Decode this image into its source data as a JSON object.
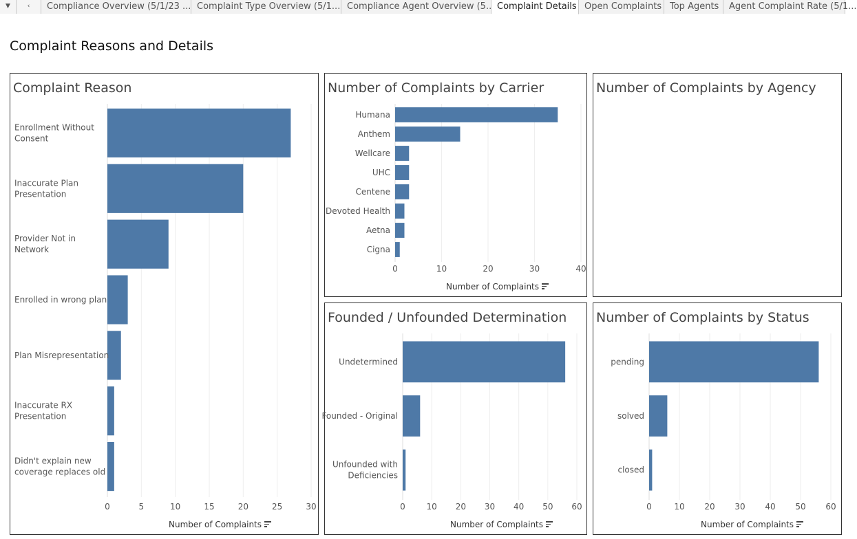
{
  "tabs": {
    "items": [
      {
        "label": "Compliance Overview (5/1/23 ..."
      },
      {
        "label": "Complaint Type Overview (5/1..."
      },
      {
        "label": "Compliance Agent Overview (5..."
      },
      {
        "label": "Complaint Details",
        "active": true
      },
      {
        "label": "Open Complaints"
      },
      {
        "label": "Top Agents"
      },
      {
        "label": "Agent Complaint Rate (5/1..."
      }
    ]
  },
  "page": {
    "title": "Complaint Reasons and Details"
  },
  "colors": {
    "bar": "#4e79a7",
    "grid": "#eeeeee",
    "text": "#555555"
  },
  "chart_data": [
    {
      "id": "reason",
      "type": "bar",
      "orientation": "horizontal",
      "title": "Complaint Reason",
      "xlabel": "Number of Complaints",
      "categories": [
        [
          "Enrollment Without",
          "Consent"
        ],
        [
          "Inaccurate Plan",
          "Presentation"
        ],
        [
          "Provider Not in",
          "Network"
        ],
        [
          "Enrolled in wrong plan"
        ],
        [
          "Plan Misrepresentation"
        ],
        [
          "Inaccurate RX",
          "Presentation"
        ],
        [
          "Didn't explain new",
          "coverage replaces old"
        ]
      ],
      "values": [
        27,
        20,
        9,
        3,
        2,
        1,
        1
      ],
      "xlim": [
        0,
        30
      ],
      "ticks": [
        0,
        5,
        10,
        15,
        20,
        25,
        30
      ]
    },
    {
      "id": "carrier",
      "type": "bar",
      "orientation": "horizontal",
      "title": "Number of Complaints by Carrier",
      "xlabel": "Number of Complaints",
      "categories": [
        [
          "Humana"
        ],
        [
          "Anthem"
        ],
        [
          "Wellcare"
        ],
        [
          "UHC"
        ],
        [
          "Centene"
        ],
        [
          "Devoted Health"
        ],
        [
          "Aetna"
        ],
        [
          "Cigna"
        ]
      ],
      "values": [
        35,
        14,
        3,
        3,
        3,
        2,
        2,
        1
      ],
      "xlim": [
        0,
        40
      ],
      "ticks": [
        0,
        10,
        20,
        30,
        40
      ]
    },
    {
      "id": "agency",
      "type": "bar",
      "orientation": "horizontal",
      "title": "Number of Complaints by Agency",
      "categories": [],
      "values": []
    },
    {
      "id": "founded",
      "type": "bar",
      "orientation": "horizontal",
      "title": "Founded / Unfounded Determination",
      "xlabel": "Number of Complaints",
      "categories": [
        [
          "Undetermined"
        ],
        [
          "Founded - Original"
        ],
        [
          "Unfounded with",
          "Deficiencies"
        ]
      ],
      "values": [
        56,
        6,
        1
      ],
      "xlim": [
        0,
        60
      ],
      "ticks": [
        0,
        10,
        20,
        30,
        40,
        50,
        60
      ]
    },
    {
      "id": "status",
      "type": "bar",
      "orientation": "horizontal",
      "title": "Number of Complaints by Status",
      "xlabel": "Number of Complaints",
      "categories": [
        [
          "pending"
        ],
        [
          "solved"
        ],
        [
          "closed"
        ]
      ],
      "values": [
        56,
        6,
        1
      ],
      "xlim": [
        0,
        60
      ],
      "ticks": [
        0,
        10,
        20,
        30,
        40,
        50,
        60
      ]
    }
  ]
}
